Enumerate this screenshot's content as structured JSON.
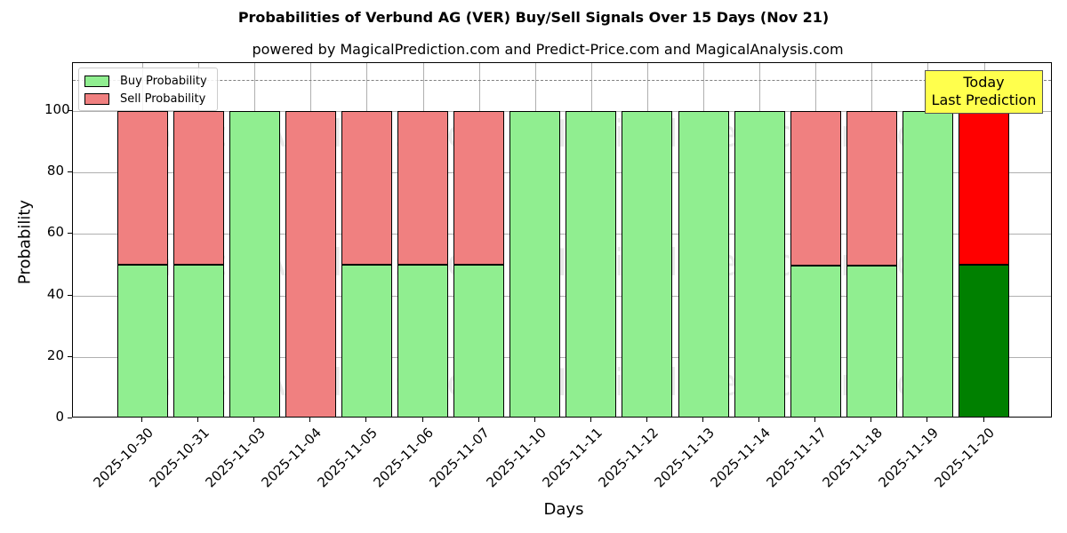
{
  "chart_data": {
    "type": "bar",
    "stacked": true,
    "title": "Probabilities of Verbund AG (VER) Buy/Sell Signals Over 15 Days (Nov 21)",
    "subtitle": "powered by MagicalPrediction.com and Predict-Price.com and MagicalAnalysis.com",
    "xlabel": "Days",
    "ylabel": "Probability",
    "ylim": [
      0,
      115
    ],
    "yticks": [
      0,
      20,
      40,
      60,
      80,
      100
    ],
    "grid": true,
    "legend_position": "upper left",
    "reference_line": {
      "y": 110,
      "style": "dashed",
      "color": "#808080"
    },
    "categories": [
      "2025-10-30",
      "2025-10-31",
      "2025-11-03",
      "2025-11-04",
      "2025-11-05",
      "2025-11-06",
      "2025-11-07",
      "2025-11-10",
      "2025-11-11",
      "2025-11-12",
      "2025-11-13",
      "2025-11-14",
      "2025-11-17",
      "2025-11-18",
      "2025-11-19",
      "2025-11-20"
    ],
    "series": [
      {
        "name": "Buy Probability",
        "color": "#90ee90",
        "values": [
          50,
          50,
          100,
          0,
          50,
          50,
          50,
          100,
          100,
          100,
          100,
          100,
          49.6,
          49.6,
          100,
          50
        ]
      },
      {
        "name": "Sell Probability",
        "color": "#f08080",
        "values": [
          50,
          50,
          0,
          100,
          50,
          50,
          50,
          0,
          0,
          0,
          0,
          0,
          50.4,
          50.4,
          0,
          50
        ]
      }
    ],
    "highlight": {
      "index": 15,
      "buy_color": "#008000",
      "sell_color": "#ff0000"
    },
    "annotations": [
      {
        "text": "Today\nLast Prediction",
        "x": "2025-11-20",
        "box_color": "#ffff4d"
      }
    ],
    "watermarks": [
      "MagicalAnalysis.com",
      "MagicalPrediction.com"
    ]
  },
  "labels": {
    "title": "Probabilities of Verbund AG (VER) Buy/Sell Signals Over 15 Days (Nov 21)",
    "subtitle": "powered by MagicalPrediction.com and Predict-Price.com and MagicalAnalysis.com",
    "xlabel": "Days",
    "ylabel": "Probability",
    "legend_buy": "Buy Probability",
    "legend_sell": "Sell Probability",
    "annot_line1": "Today",
    "annot_line2": "Last Prediction",
    "wm1": "MagicalAnalysis.com",
    "wm2": "MagicalPrediction.com"
  }
}
